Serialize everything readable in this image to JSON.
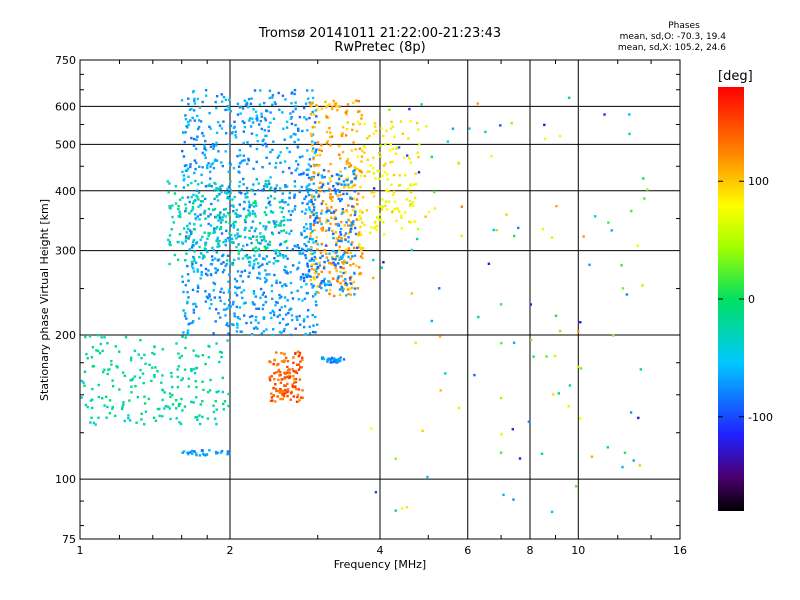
{
  "title_line1": "Tromsø 20141011 21:22:00-21:23:43",
  "title_line2": "RwPretec (8p)",
  "phases": {
    "heading": "Phases",
    "o_line": "mean, sd,O: -70.3, 19.4",
    "x_line": "mean, sd,X: 105.2, 24.6"
  },
  "colorbar": {
    "title": "[deg]",
    "ticks": [
      "100",
      "0",
      "-100"
    ],
    "tick_values": [
      100,
      0,
      -100
    ],
    "range": [
      -180,
      180
    ]
  },
  "chart_data": {
    "type": "scatter",
    "xlabel": "Frequency [MHz]",
    "ylabel": "Stationary phase Virtual Height [km]",
    "xscale": "log",
    "yscale": "log",
    "xlim": [
      1,
      16
    ],
    "ylim": [
      75,
      750
    ],
    "xticks": [
      1,
      2,
      4,
      6,
      8,
      10,
      16
    ],
    "xtick_labels": [
      "1",
      "2",
      "4",
      "6",
      "8",
      "10",
      "16"
    ],
    "yticks": [
      75,
      100,
      200,
      300,
      400,
      500,
      600,
      750
    ],
    "ytick_labels": [
      "75",
      "100",
      "200",
      "300",
      "400",
      "500",
      "600",
      "750"
    ],
    "grid": true,
    "color_encoding": "phase (deg)",
    "clusters": [
      {
        "name": "low-layer cyan",
        "fmin": 1.0,
        "fmax": 2.0,
        "hmin": 130,
        "hmax": 200,
        "phase": -20,
        "count": 220
      },
      {
        "name": "F-region O trace",
        "fmin": 1.6,
        "fmax": 3.0,
        "hmin": 200,
        "hmax": 650,
        "phase": -70,
        "count": 900
      },
      {
        "name": "F-region cyan",
        "fmin": 1.5,
        "fmax": 2.6,
        "hmin": 280,
        "hmax": 420,
        "phase": -25,
        "count": 250
      },
      {
        "name": "F-region X trace",
        "fmin": 2.9,
        "fmax": 3.7,
        "hmin": 240,
        "hmax": 620,
        "phase": 110,
        "count": 320
      },
      {
        "name": "X trace blue edge",
        "fmin": 2.8,
        "fmax": 3.6,
        "hmin": 240,
        "hmax": 450,
        "phase": -75,
        "count": 200
      },
      {
        "name": "upper yellow",
        "fmin": 3.6,
        "fmax": 4.8,
        "hmin": 320,
        "hmax": 560,
        "phase": 80,
        "count": 140
      },
      {
        "name": "E-region orange",
        "fmin": 2.4,
        "fmax": 2.8,
        "hmin": 145,
        "hmax": 185,
        "phase": 140,
        "count": 130
      },
      {
        "name": "E-region blue",
        "fmin": 3.0,
        "fmax": 3.4,
        "hmin": 175,
        "hmax": 180,
        "phase": -75,
        "count": 30
      },
      {
        "name": "sporadic low",
        "fmin": 1.6,
        "fmax": 2.0,
        "hmin": 112,
        "hmax": 115,
        "phase": -70,
        "count": 30
      },
      {
        "name": "scattered noise",
        "fmin": 3.8,
        "fmax": 14.0,
        "hmin": 85,
        "hmax": 650,
        "phase": 0,
        "count": 120
      }
    ]
  }
}
